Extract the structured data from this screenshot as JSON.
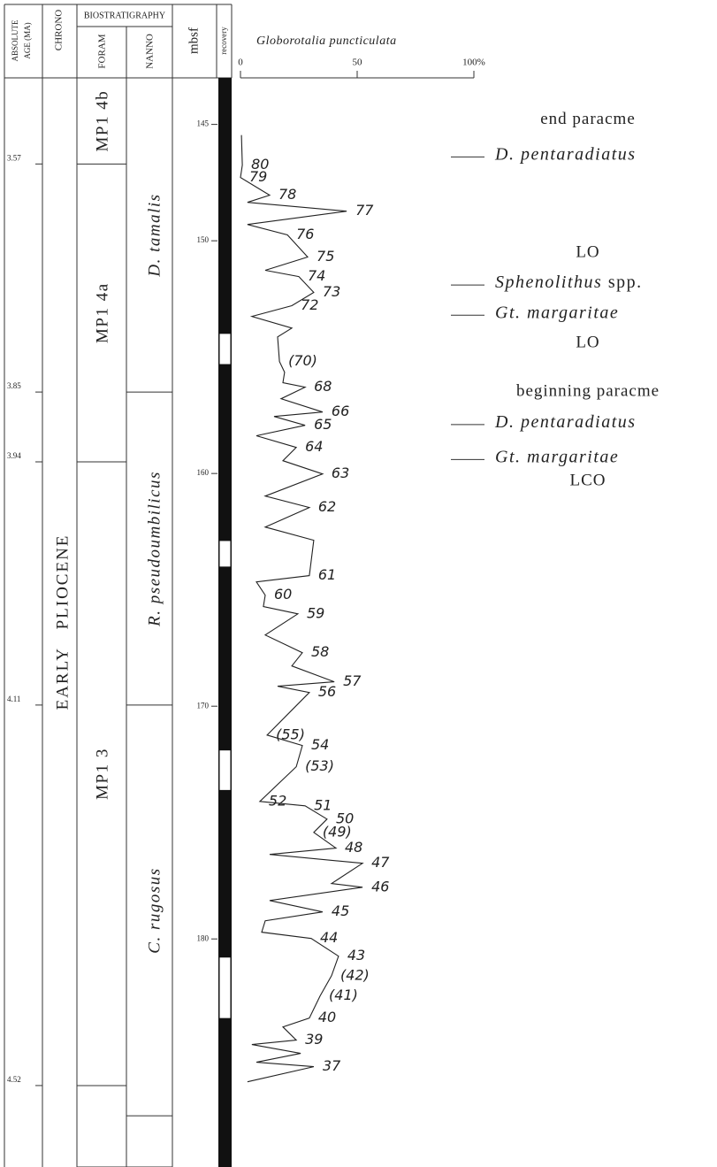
{
  "chart_data": {
    "type": "stratigraphic-log",
    "title": "Globorotalia puncticulata",
    "headers": {
      "age": [
        "ABSOLUTE",
        "AGE (MA)"
      ],
      "chrono": "CHRONO",
      "biostratigraphy": "BIOSTRATIGRAPHY",
      "foram": "FORAM",
      "nanno": "NANNO",
      "depth": "mbsf",
      "recovery": "recovery"
    },
    "ylim": [
      143,
      189.8
    ],
    "yticks": [
      145,
      150,
      160,
      170,
      180
    ],
    "xlim": [
      0,
      100
    ],
    "xticks": [
      0,
      50,
      {
        "value": 100,
        "label": "100%"
      }
    ],
    "age_datums": [
      {
        "age": 3.57,
        "depth": 146.7
      },
      {
        "age": 3.85,
        "depth": 156.5
      },
      {
        "age": 3.94,
        "depth": 159.5
      },
      {
        "age": 4.11,
        "depth": 169.95
      },
      {
        "age": 4.52,
        "depth": 186.3
      }
    ],
    "chrono": "EARLY   PLIOCENE",
    "foram_zones": [
      {
        "name": "MP1 4b",
        "top": 143,
        "base": 146.7
      },
      {
        "name": "MP1 4a",
        "top": 146.7,
        "base": 159.5
      },
      {
        "name": "MP1 3",
        "top": 159.5,
        "base": 186.3
      },
      {
        "name": null,
        "top": 186.3,
        "base": 189.8
      }
    ],
    "nanno_zones": [
      {
        "name": "D. tamalis",
        "top": 143,
        "base": 156.5
      },
      {
        "name": "R. pseudoumbilicus",
        "top": 156.5,
        "base": 169.95
      },
      {
        "name": "C. rugosus",
        "top": 169.95,
        "base": 187.6
      },
      {
        "name": null,
        "top": 187.6,
        "base": 189.8
      }
    ],
    "recovery_gaps": [
      [
        154.0,
        155.3
      ],
      [
        162.9,
        164.0
      ],
      [
        171.9,
        173.6
      ],
      [
        180.8,
        183.4
      ]
    ],
    "depth": [
      145.46,
      146.75,
      147.28,
      148.04,
      148.35,
      148.73,
      149.3,
      149.75,
      150.7,
      151.27,
      151.54,
      152.22,
      152.79,
      153.25,
      153.75,
      154.13,
      155.19,
      155.65,
      156.1,
      156.29,
      156.79,
      157.36,
      157.55,
      157.93,
      158.38,
      158.88,
      159.45,
      160.02,
      160.97,
      161.46,
      162.3,
      162.87,
      164.39,
      164.66,
      165.23,
      165.72,
      166.03,
      166.94,
      167.7,
      168.27,
      168.95,
      169.14,
      169.41,
      171.24,
      171.69,
      172.6,
      174.09,
      174.28,
      174.85,
      175.42,
      176.1,
      176.37,
      176.75,
      177.62,
      177.78,
      178.35,
      178.84,
      179.22,
      179.71,
      179.98,
      180.74,
      181.58,
      182.45,
      183.4,
      183.78,
      184.35,
      184.54,
      184.92,
      185.3,
      185.49,
      186.14
    ],
    "values": [
      0.4,
      0.8,
      0,
      12.5,
      3.0,
      45.5,
      3.0,
      20.1,
      28.8,
      10.6,
      25.0,
      31.4,
      22.0,
      4.9,
      22.0,
      15.9,
      16.7,
      18.9,
      18.2,
      27.7,
      17.4,
      35.2,
      14.4,
      27.7,
      6.8,
      23.9,
      18.2,
      35.2,
      10.6,
      29.5,
      10.6,
      31.4,
      29.5,
      6.8,
      10.6,
      9.8,
      24.6,
      10.6,
      26.5,
      22.0,
      40.2,
      15.9,
      29.5,
      11.4,
      26.5,
      23.9,
      8.3,
      27.7,
      37.1,
      31.4,
      40.9,
      12.5,
      52.3,
      39.0,
      52.3,
      12.5,
      35.2,
      10.6,
      9.1,
      30.3,
      42.0,
      39.0,
      34.1,
      29.5,
      18.2,
      23.9,
      4.9,
      25.8,
      6.8,
      31.4,
      3.0
    ],
    "sample_labels": [
      null,
      "80",
      "79",
      "78",
      null,
      "77",
      null,
      "76",
      "75",
      null,
      "74",
      "73",
      "72",
      null,
      null,
      null,
      "(70)",
      null,
      null,
      "68",
      null,
      "66",
      null,
      "65",
      null,
      "64",
      null,
      "63",
      null,
      "62",
      null,
      null,
      "61",
      null,
      "60",
      null,
      "59",
      null,
      "58",
      null,
      "57",
      null,
      "56",
      "(55)",
      "54",
      "(53)",
      "52",
      "51",
      "50",
      "(49)",
      "48",
      null,
      "47",
      null,
      "46",
      null,
      "45",
      null,
      null,
      "44",
      "43",
      "(42)",
      "(41)",
      "40",
      null,
      "39",
      null,
      null,
      null,
      "37",
      null
    ],
    "color": "#222222",
    "events": [
      {
        "event": "end paracme",
        "taxon": "D. pentaradiatus",
        "depth": 146.4
      },
      {
        "event": "LO",
        "taxon": "Sphenolithus",
        "qualifier": "spp.",
        "depth": 151.9
      },
      {
        "event": "LO",
        "taxon": "Gt. margaritae",
        "depth": 153.2
      },
      {
        "event": "beginning paracme",
        "taxon": "D. pentaradiatus",
        "depth": 157.9
      },
      {
        "event": "LCO",
        "taxon": "Gt. margaritae",
        "depth": 159.4
      }
    ]
  }
}
